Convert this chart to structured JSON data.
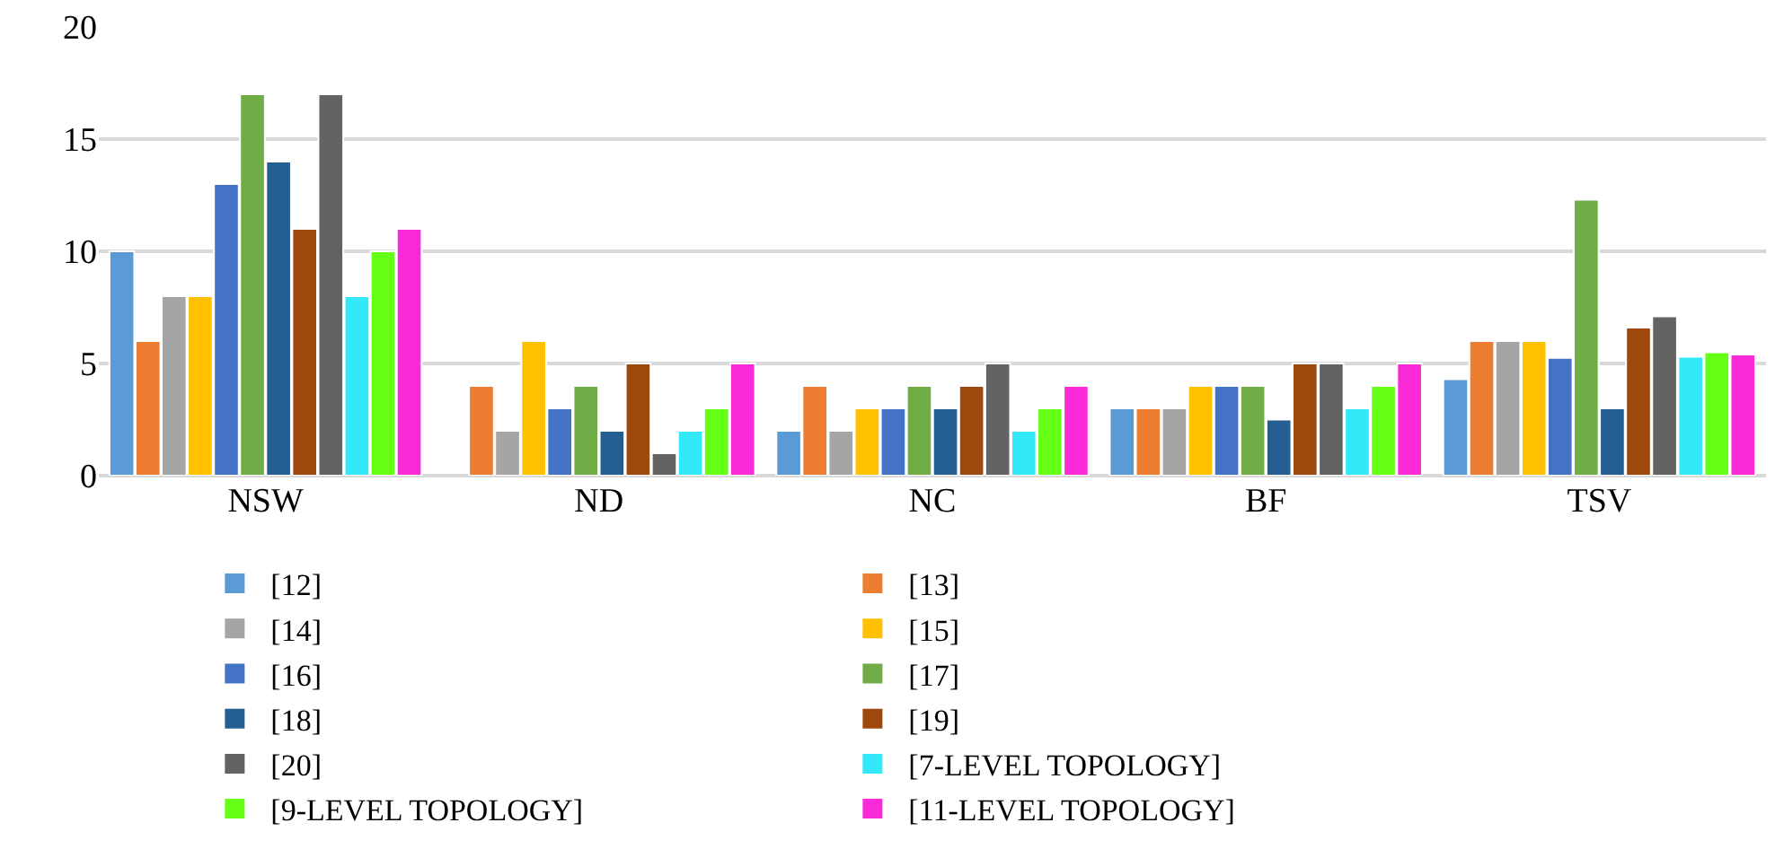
{
  "chart_data": {
    "type": "bar",
    "categories": [
      "NSW",
      "ND",
      "NC",
      "BF",
      "TSV"
    ],
    "ylim": [
      0,
      20
    ],
    "yticks": [
      0,
      5,
      10,
      15,
      20
    ],
    "grid": "y",
    "legend": "bottom",
    "series": [
      {
        "name": "[12]",
        "color": "#5b9bd5",
        "values": [
          10,
          null,
          2,
          3,
          4.3
        ]
      },
      {
        "name": "[13]",
        "color": "#ed7d31",
        "values": [
          6,
          4,
          4,
          3,
          6
        ]
      },
      {
        "name": "[14]",
        "color": "#a5a5a5",
        "values": [
          8,
          2,
          2,
          3,
          6
        ]
      },
      {
        "name": "[15]",
        "color": "#ffc000",
        "values": [
          8,
          6,
          3,
          4,
          6
        ]
      },
      {
        "name": "[16]",
        "color": "#4472c4",
        "values": [
          13,
          3,
          3,
          4,
          5.25
        ]
      },
      {
        "name": "[17]",
        "color": "#70ad47",
        "values": [
          17,
          4,
          4,
          4,
          12.3
        ]
      },
      {
        "name": "[18]",
        "color": "#255e91",
        "values": [
          14,
          2,
          3,
          2.5,
          3
        ]
      },
      {
        "name": "[19]",
        "color": "#9e480e",
        "values": [
          11,
          5,
          4,
          5,
          6.6
        ]
      },
      {
        "name": "[20]",
        "color": "#636363",
        "values": [
          17,
          1,
          5,
          5,
          7.1
        ]
      },
      {
        "name": "[7-LEVEL TOPOLOGY]",
        "color": "#33e8f8",
        "values": [
          8,
          2,
          2,
          3,
          5.3
        ]
      },
      {
        "name": "[9-LEVEL TOPOLOGY]",
        "color": "#66ff16",
        "values": [
          10,
          3,
          3,
          4,
          5.5
        ]
      },
      {
        "name": "[11-LEVEL TOPOLOGY]",
        "color": "#fa2ad8",
        "values": [
          11,
          5,
          4,
          5,
          5.4
        ]
      }
    ]
  }
}
